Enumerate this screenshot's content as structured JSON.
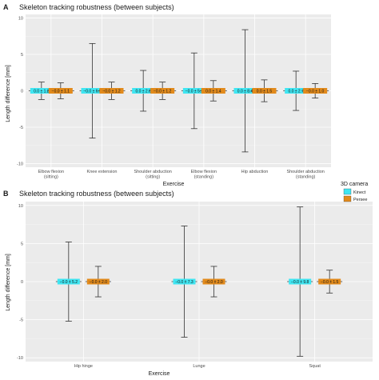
{
  "colors": {
    "kinect": "#3fe6f2",
    "persee": "#e28a1b",
    "errorbar": "#333333",
    "panel": "#ebebeb"
  },
  "legend": {
    "title": "3D camera",
    "items": [
      {
        "label": "Kinect",
        "color": "#3fe6f2"
      },
      {
        "label": "Persee",
        "color": "#e28a1b"
      }
    ]
  },
  "chart_data": [
    {
      "type": "errorbar",
      "panel": "A",
      "title": "Skeleton tracking robustness (between subjects)",
      "xlabel": "Exercise",
      "ylabel": "Length difference [mm]",
      "ylim": [
        -10.5,
        10.5
      ],
      "yticks": [
        -10,
        -5,
        0,
        5,
        10
      ],
      "categories": [
        "Elbow flexion\n(sitting)",
        "Knee extension",
        "Shoulder abduction\n(sitting)",
        "Elbow flexion\n(standing)",
        "Hip abduction",
        "Shoulder abduction\n(standing)"
      ],
      "series": [
        {
          "name": "Kinect",
          "mean": [
            0,
            0,
            0,
            0,
            0,
            0
          ],
          "sd": [
            1.2,
            6.5,
            2.8,
            5.2,
            8.4,
            2.7
          ],
          "labels": [
            "0.0 ± 1.2",
            "−0.0 ± 6.5",
            "0.0 ± 2.8",
            "−0.0 ± 5.2",
            "0.0 ± 8.4",
            "0.0 ± 2.7"
          ]
        },
        {
          "name": "Persee",
          "mean": [
            0,
            0,
            0,
            0,
            0,
            0
          ],
          "sd": [
            1.1,
            1.2,
            1.2,
            1.4,
            1.5,
            1.0
          ],
          "labels": [
            "−0.0 ± 1.1",
            "−0.0 ± 1.2",
            "−0.0 ± 1.2",
            "0.0 ± 1.4",
            "0.0 ± 1.5",
            "−0.0 ± 1.0"
          ]
        }
      ]
    },
    {
      "type": "errorbar",
      "panel": "B",
      "title": "Skeleton tracking robustness (between subjects)",
      "xlabel": "Exercise",
      "ylabel": "Length difference [mm]",
      "ylim": [
        -10.5,
        10.5
      ],
      "yticks": [
        -10,
        -5,
        0,
        5,
        10
      ],
      "categories": [
        "Hip hinge",
        "Lunge",
        "Squat"
      ],
      "series": [
        {
          "name": "Kinect",
          "mean": [
            0,
            0,
            0
          ],
          "sd": [
            5.2,
            7.3,
            9.8
          ],
          "labels": [
            "−0.0 ± 5.2",
            "−0.0 ± 7.3",
            "−0.0 ± 9.8"
          ]
        },
        {
          "name": "Persee",
          "mean": [
            0,
            0,
            0
          ],
          "sd": [
            2.0,
            2.0,
            1.5
          ],
          "labels": [
            "−0.0 ± 2.0",
            "−0.0 ± 2.0",
            "−0.0 ± 1.5"
          ]
        }
      ]
    }
  ]
}
